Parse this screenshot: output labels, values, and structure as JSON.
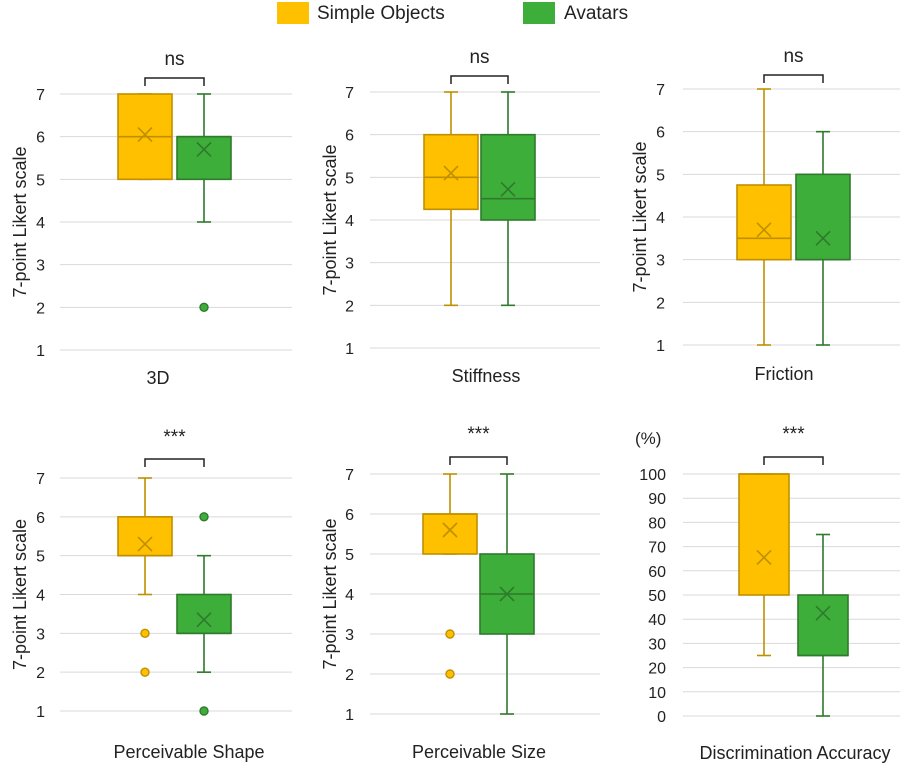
{
  "legend": [
    {
      "name": "Simple Objects",
      "color": "#FFC000",
      "stroke": "#BF8F00"
    },
    {
      "name": "Avatars",
      "color": "#3EAE3B",
      "stroke": "#2F7A2B"
    }
  ],
  "chart_data": [
    {
      "type": "box",
      "title": "3D",
      "ylabel": "7-point Likert scale",
      "ylim": [
        1,
        7
      ],
      "yticks": [
        1,
        2,
        3,
        4,
        5,
        6,
        7
      ],
      "significance": "ns",
      "series": [
        {
          "name": "Simple Objects",
          "min": 5,
          "q1": 5,
          "median": 6,
          "q3": 7,
          "max": 7,
          "mean": 6.05,
          "outliers": []
        },
        {
          "name": "Avatars",
          "min": 4,
          "q1": 5,
          "median": 6,
          "q3": 6,
          "max": 7,
          "mean": 5.7,
          "outliers": [
            2
          ]
        }
      ]
    },
    {
      "type": "box",
      "title": "Stiffness",
      "ylabel": "7-point Likert scale",
      "ylim": [
        1,
        7
      ],
      "yticks": [
        1,
        2,
        3,
        4,
        5,
        6,
        7
      ],
      "significance": "ns",
      "series": [
        {
          "name": "Simple Objects",
          "min": 2,
          "q1": 4.25,
          "median": 5,
          "q3": 6,
          "max": 7,
          "mean": 5.1,
          "outliers": []
        },
        {
          "name": "Avatars",
          "min": 2,
          "q1": 4,
          "median": 4.5,
          "q3": 6,
          "max": 7,
          "mean": 4.72,
          "outliers": []
        }
      ]
    },
    {
      "type": "box",
      "title": "Friction",
      "ylabel": "7-point Likert scale",
      "ylim": [
        1,
        7
      ],
      "yticks": [
        1,
        2,
        3,
        4,
        5,
        6,
        7
      ],
      "significance": "ns",
      "series": [
        {
          "name": "Simple Objects",
          "min": 1,
          "q1": 3,
          "median": 3.5,
          "q3": 4.75,
          "max": 7,
          "mean": 3.7,
          "outliers": []
        },
        {
          "name": "Avatars",
          "min": 1,
          "q1": 3,
          "median": 3,
          "q3": 5,
          "max": 6,
          "mean": 3.5,
          "outliers": []
        }
      ]
    },
    {
      "type": "box",
      "title": "Perceivable Shape",
      "ylabel": "7-point Likert scale",
      "ylim": [
        1,
        7
      ],
      "yticks": [
        1,
        2,
        3,
        4,
        5,
        6,
        7
      ],
      "significance": "***",
      "series": [
        {
          "name": "Simple Objects",
          "min": 4,
          "q1": 5,
          "median": 5,
          "q3": 6,
          "max": 7,
          "mean": 5.3,
          "outliers": [
            3,
            2
          ]
        },
        {
          "name": "Avatars",
          "min": 2,
          "q1": 3,
          "median": 3,
          "q3": 4,
          "max": 5,
          "mean": 3.35,
          "outliers": [
            6,
            1
          ]
        }
      ]
    },
    {
      "type": "box",
      "title": "Perceivable Size",
      "ylabel": "7-point Likert scale",
      "ylim": [
        1,
        7
      ],
      "yticks": [
        1,
        2,
        3,
        4,
        5,
        6,
        7
      ],
      "significance": "***",
      "series": [
        {
          "name": "Simple Objects",
          "min": 5,
          "q1": 5,
          "median": 6,
          "q3": 6,
          "max": 7,
          "mean": 5.6,
          "outliers": [
            3,
            2
          ]
        },
        {
          "name": "Avatars",
          "min": 1,
          "q1": 3,
          "median": 4,
          "q3": 5,
          "max": 7,
          "mean": 4.0,
          "outliers": []
        }
      ]
    },
    {
      "type": "box",
      "title": "Discrimination Accuracy",
      "ylabel": "",
      "unit": "(%)",
      "ylim": [
        0,
        100
      ],
      "yticks": [
        0,
        10,
        20,
        30,
        40,
        50,
        60,
        70,
        80,
        90,
        100
      ],
      "significance": "***",
      "series": [
        {
          "name": "Simple Objects",
          "min": 25,
          "q1": 50,
          "median": 100,
          "q3": 100,
          "max": 100,
          "mean": 65.5,
          "outliers": []
        },
        {
          "name": "Avatars",
          "min": 0,
          "q1": 25,
          "median": 25,
          "q3": 50,
          "max": 75,
          "mean": 42.5,
          "outliers": []
        }
      ]
    }
  ]
}
